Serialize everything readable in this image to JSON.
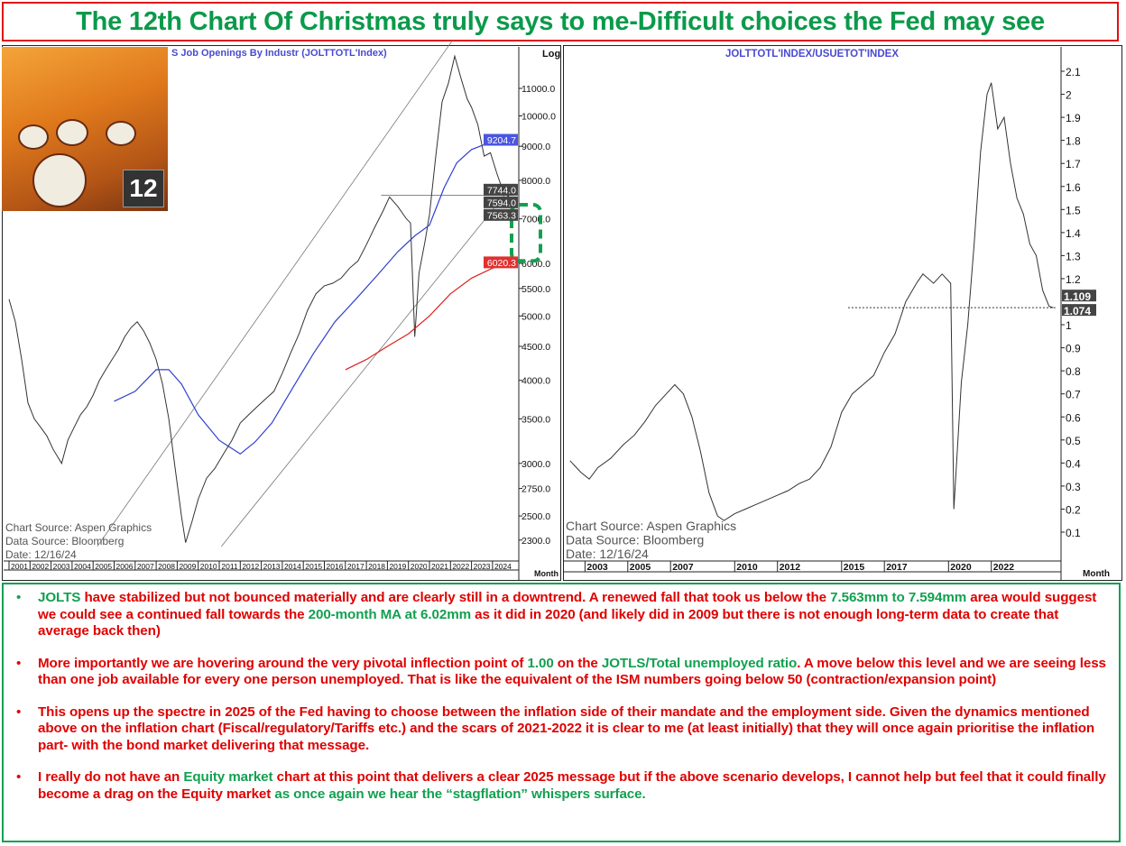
{
  "title": "The 12th Chart Of Christmas truly says to me-Difficult choices the Fed may see",
  "colors": {
    "title_green": "#0a9a4a",
    "title_border": "#e01010",
    "text_red": "#e00000",
    "text_green": "#12a050",
    "ma_blue": "#3040d0",
    "ma_red": "#e02020",
    "target_box": "#12a050"
  },
  "photo": {
    "badge": "12"
  },
  "chart_data": [
    {
      "type": "line",
      "title": "S Job Openings By Industr (JOLTTOTL'Index)",
      "scale_label": "Log",
      "xlabel": "Month",
      "yscale": "log",
      "ylim": [
        2250,
        13000
      ],
      "xlim": [
        2001,
        2025
      ],
      "y_ticks": [
        11000,
        10000,
        9000,
        8000,
        7000,
        6000,
        5500,
        5000,
        4500,
        4000,
        3500,
        3000,
        2750,
        2500,
        2300
      ],
      "x_ticks": [
        2001,
        2002,
        2003,
        2004,
        2005,
        2006,
        2007,
        2008,
        2009,
        2010,
        2011,
        2012,
        2013,
        2014,
        2015,
        2016,
        2017,
        2018,
        2019,
        2020,
        2021,
        2022,
        2023,
        2024
      ],
      "series": [
        {
          "name": "JOLTS total job openings",
          "color": "#333333",
          "x": [
            2001.0,
            2001.3,
            2001.6,
            2001.9,
            2002.2,
            2002.5,
            2002.8,
            2003.1,
            2003.5,
            2003.8,
            2004.1,
            2004.4,
            2004.7,
            2005.0,
            2005.3,
            2005.6,
            2005.9,
            2006.2,
            2006.5,
            2006.8,
            2007.1,
            2007.4,
            2007.7,
            2008.0,
            2008.3,
            2008.6,
            2008.9,
            2009.2,
            2009.4,
            2009.7,
            2010.0,
            2010.4,
            2010.8,
            2011.2,
            2011.6,
            2012.0,
            2012.4,
            2012.8,
            2013.2,
            2013.6,
            2014.0,
            2014.4,
            2014.8,
            2015.2,
            2015.6,
            2016.0,
            2016.4,
            2016.8,
            2017.2,
            2017.6,
            2018.0,
            2018.4,
            2018.8,
            2019.1,
            2019.5,
            2019.9,
            2020.1,
            2020.3,
            2020.5,
            2020.8,
            2021.0,
            2021.3,
            2021.6,
            2021.9,
            2022.2,
            2022.5,
            2022.8,
            2023.0,
            2023.3,
            2023.6,
            2023.9,
            2024.2,
            2024.5,
            2024.75,
            2024.9
          ],
          "values": [
            5300,
            4900,
            4300,
            3700,
            3500,
            3400,
            3300,
            3150,
            3000,
            3250,
            3400,
            3550,
            3650,
            3800,
            4000,
            4150,
            4300,
            4450,
            4650,
            4800,
            4900,
            4750,
            4550,
            4300,
            3950,
            3500,
            2950,
            2500,
            2280,
            2450,
            2650,
            2850,
            2950,
            3100,
            3250,
            3450,
            3550,
            3650,
            3750,
            3850,
            4100,
            4400,
            4700,
            5100,
            5400,
            5550,
            5600,
            5700,
            5900,
            6050,
            6400,
            6800,
            7200,
            7550,
            7300,
            7000,
            6900,
            4650,
            5800,
            6500,
            7100,
            8700,
            10500,
            11200,
            12300,
            11400,
            10600,
            10300,
            9700,
            8700,
            8800,
            8200,
            7700,
            7563,
            7744
          ]
        },
        {
          "name": "Moving average (blue)",
          "color": "#3040d0",
          "x": [
            2006.0,
            2007.0,
            2008.0,
            2008.6,
            2009.2,
            2010.0,
            2011.0,
            2012.0,
            2012.7,
            2013.5,
            2014.5,
            2015.5,
            2016.5,
            2017.5,
            2018.5,
            2019.5,
            2020.3,
            2021.0,
            2021.7,
            2022.3,
            2023.0,
            2023.8,
            2024.9
          ],
          "values": [
            3720,
            3850,
            4150,
            4150,
            3950,
            3550,
            3250,
            3100,
            3230,
            3450,
            3900,
            4400,
            4900,
            5300,
            5750,
            6250,
            6600,
            6850,
            7800,
            8500,
            8900,
            9100,
            9204.7
          ]
        },
        {
          "name": "200-month MA (red)",
          "color": "#e02020",
          "x": [
            2017.0,
            2018.0,
            2019.0,
            2020.0,
            2021.0,
            2022.0,
            2023.0,
            2024.0,
            2024.9
          ],
          "values": [
            4150,
            4300,
            4500,
            4700,
            5000,
            5400,
            5700,
            5900,
            6020.3
          ]
        }
      ],
      "trendlines": [
        {
          "name": "upper channel",
          "from": [
            2005.2,
            2250
          ],
          "to": [
            2022.1,
            13000
          ]
        },
        {
          "name": "lower channel",
          "from": [
            2011.1,
            2250
          ],
          "to": [
            2025.0,
            7900
          ]
        },
        {
          "name": "support level",
          "from": [
            2018.7,
            7594
          ],
          "to": [
            2025.0,
            7594
          ]
        }
      ],
      "value_labels": [
        {
          "text": "9204.7",
          "value": 9204.7,
          "style": "blue"
        },
        {
          "text": "7744.0",
          "value": 7744.0,
          "style": "dark"
        },
        {
          "text": "7594.0",
          "value": 7594.0,
          "style": "dark"
        },
        {
          "text": "7563.3",
          "value": 7563.3,
          "style": "dark"
        },
        {
          "text": "6020.3",
          "value": 6020.3,
          "style": "red"
        }
      ],
      "target_zone": [
        6050,
        7350
      ],
      "annotations": [
        "Chart Source:  Aspen  Graphics",
        "Data  Source:  Bloomberg",
        "Date:  12/16/24"
      ]
    },
    {
      "type": "line",
      "title": "JOLTTOTL'INDEX/USUETOT'INDEX",
      "xlabel": "Month",
      "ylim": [
        0,
        2.2
      ],
      "xlim": [
        2001,
        2025
      ],
      "y_ticks": [
        2.1,
        2,
        1.9,
        1.8,
        1.7,
        1.6,
        1.5,
        1.4,
        1.3,
        1.2,
        1,
        0.9,
        0.8,
        0.7,
        0.6,
        0.5,
        0.4,
        0.3,
        0.2,
        0.1
      ],
      "x_ticks": [
        2003,
        2005,
        2007,
        2010,
        2012,
        2015,
        2017,
        2020,
        2022
      ],
      "series": [
        {
          "name": "Job openings / total unemployed",
          "color": "#333333",
          "x": [
            2002.3,
            2002.8,
            2003.2,
            2003.6,
            2004.2,
            2004.8,
            2005.3,
            2005.8,
            2006.3,
            2006.8,
            2007.2,
            2007.6,
            2008.0,
            2008.4,
            2008.8,
            2009.2,
            2009.5,
            2010.0,
            2010.5,
            2011.0,
            2011.5,
            2012.0,
            2012.5,
            2013.0,
            2013.5,
            2014.0,
            2014.5,
            2015.0,
            2015.5,
            2016.0,
            2016.5,
            2017.0,
            2017.5,
            2018.0,
            2018.5,
            2018.8,
            2019.3,
            2019.7,
            2020.1,
            2020.25,
            2020.6,
            2020.9,
            2021.2,
            2021.5,
            2021.8,
            2022.0,
            2022.3,
            2022.6,
            2022.9,
            2023.2,
            2023.5,
            2023.8,
            2024.1,
            2024.4,
            2024.7,
            2024.9
          ],
          "values": [
            0.41,
            0.36,
            0.33,
            0.38,
            0.42,
            0.48,
            0.52,
            0.58,
            0.65,
            0.7,
            0.74,
            0.7,
            0.6,
            0.45,
            0.27,
            0.17,
            0.15,
            0.18,
            0.2,
            0.22,
            0.24,
            0.26,
            0.28,
            0.31,
            0.33,
            0.38,
            0.47,
            0.62,
            0.7,
            0.74,
            0.78,
            0.88,
            0.96,
            1.1,
            1.18,
            1.22,
            1.18,
            1.22,
            1.18,
            0.2,
            0.75,
            1.0,
            1.35,
            1.75,
            2.0,
            2.05,
            1.85,
            1.9,
            1.7,
            1.55,
            1.48,
            1.35,
            1.3,
            1.15,
            1.08,
            1.074
          ]
        }
      ],
      "trendlines": [
        {
          "name": "support level",
          "from": [
            2015.3,
            1.074
          ],
          "to": [
            2025.0,
            1.074
          ]
        }
      ],
      "value_labels": [
        {
          "text": "1.109",
          "value": 1.109,
          "style": "dark"
        },
        {
          "text": "1.074",
          "value": 1.074,
          "style": "dark"
        }
      ],
      "annotations": [
        "Chart  Source:  Aspen  Graphics",
        "Data  Source:  Bloomberg",
        "Date:  12/16/24"
      ]
    }
  ],
  "bullets": [
    {
      "dot_color": "green",
      "segments": [
        {
          "text": "JOLTS",
          "color": "green"
        },
        {
          "text": " have stabilized but not bounced materially and are clearly still in a downtrend. A renewed fall that took us below the ",
          "color": "red"
        },
        {
          "text": "7.563mm to 7.594mm",
          "color": "green"
        },
        {
          "text": " area would suggest we could see a continued fall towards the ",
          "color": "red"
        },
        {
          "text": "200-month MA at 6.02mm",
          "color": "green"
        },
        {
          "text": " as it did in 2020 (and likely did in 2009 but there is not enough long-term data to create that average back then)",
          "color": "red"
        }
      ]
    },
    {
      "dot_color": "red",
      "segments": [
        {
          "text": "More importantly we are hovering around the very pivotal inflection point of ",
          "color": "red"
        },
        {
          "text": "1.00",
          "color": "green"
        },
        {
          "text": " on the ",
          "color": "red"
        },
        {
          "text": "JOTLS/Total unemployed ratio",
          "color": "green"
        },
        {
          "text": ". A move below this level and we are seeing less than one job available for every one person unemployed. That is like the equivalent of the ISM numbers going below 50 (contraction/expansion point)",
          "color": "red"
        }
      ]
    },
    {
      "dot_color": "red",
      "segments": [
        {
          "text": "This opens up the spectre in 2025 of the Fed having to choose between the inflation side of their mandate and the employment side. Given the dynamics mentioned above on the inflation chart (Fiscal/regulatory/Tariffs etc.) and the scars of 2021-2022 it is clear to me (at least initially) that they will once again prioritise the inflation part- with the bond market delivering that message.",
          "color": "red"
        }
      ]
    },
    {
      "dot_color": "red",
      "segments": [
        {
          "text": "I really do not have an ",
          "color": "red"
        },
        {
          "text": "Equity market",
          "color": "green"
        },
        {
          "text": " chart at this point that delivers a clear 2025 message but if the above scenario develops, I cannot help but feel that it could finally become a drag on the Equity market ",
          "color": "red"
        },
        {
          "text": "as once again we hear the “stagflation” whispers surface.",
          "color": "green"
        }
      ]
    }
  ]
}
